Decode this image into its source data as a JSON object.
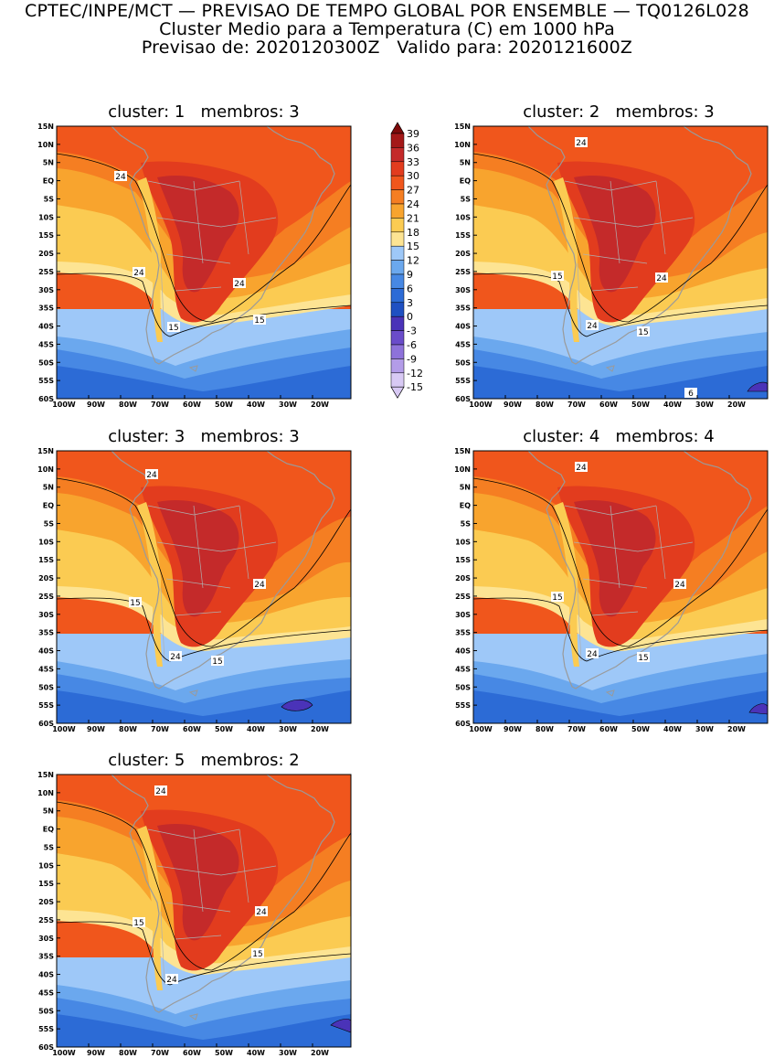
{
  "header": {
    "line1": "CPTEC/INPE/MCT — PREVISAO DE TEMPO GLOBAL POR ENSEMBLE — TQ0126L028",
    "line2": "Cluster Medio para a Temperatura (C) em 1000 hPa",
    "line3": "Previsao de: 2020120300Z   Valido para: 2020121600Z"
  },
  "axes": {
    "lat_labels": [
      "15N",
      "10N",
      "5N",
      "EQ",
      "5S",
      "10S",
      "15S",
      "20S",
      "25S",
      "30S",
      "35S",
      "40S",
      "45S",
      "50S",
      "55S",
      "60S"
    ],
    "lon_labels": [
      "100W",
      "90W",
      "80W",
      "70W",
      "60W",
      "50W",
      "40W",
      "30W",
      "20W"
    ]
  },
  "colorbar": {
    "labels": [
      "39",
      "36",
      "33",
      "30",
      "27",
      "24",
      "21",
      "18",
      "15",
      "12",
      "9",
      "6",
      "3",
      "0",
      "-3",
      "-6",
      "-9",
      "-12",
      "-15"
    ],
    "colors": [
      "#7e0a0a",
      "#a41818",
      "#c42a2a",
      "#e23c1e",
      "#f0561c",
      "#f57e22",
      "#f8a42e",
      "#fbcb52",
      "#fde493",
      "#9ec8f8",
      "#6ba8ee",
      "#4788e4",
      "#2c6bd6",
      "#1f50c2",
      "#4a33b8",
      "#6a4cca",
      "#8e72da",
      "#b39ce8",
      "#d8c9f4"
    ]
  },
  "panels": [
    {
      "title": "cluster: 1   membros: 3",
      "contour_labels": [
        "24",
        "24",
        "15",
        "24",
        "15"
      ]
    },
    {
      "title": "cluster: 2   membros: 3",
      "contour_labels": [
        "24",
        "15",
        "24",
        "24",
        "15",
        "6"
      ]
    },
    {
      "title": "cluster: 3   membros: 3",
      "contour_labels": [
        "24",
        "15",
        "24",
        "24",
        "15"
      ]
    },
    {
      "title": "cluster: 4   membros: 4",
      "contour_labels": [
        "24",
        "15",
        "24",
        "24",
        "15"
      ]
    },
    {
      "title": "cluster: 5   membros: 2",
      "contour_labels": [
        "24",
        "15",
        "24",
        "24",
        "15"
      ]
    }
  ]
}
